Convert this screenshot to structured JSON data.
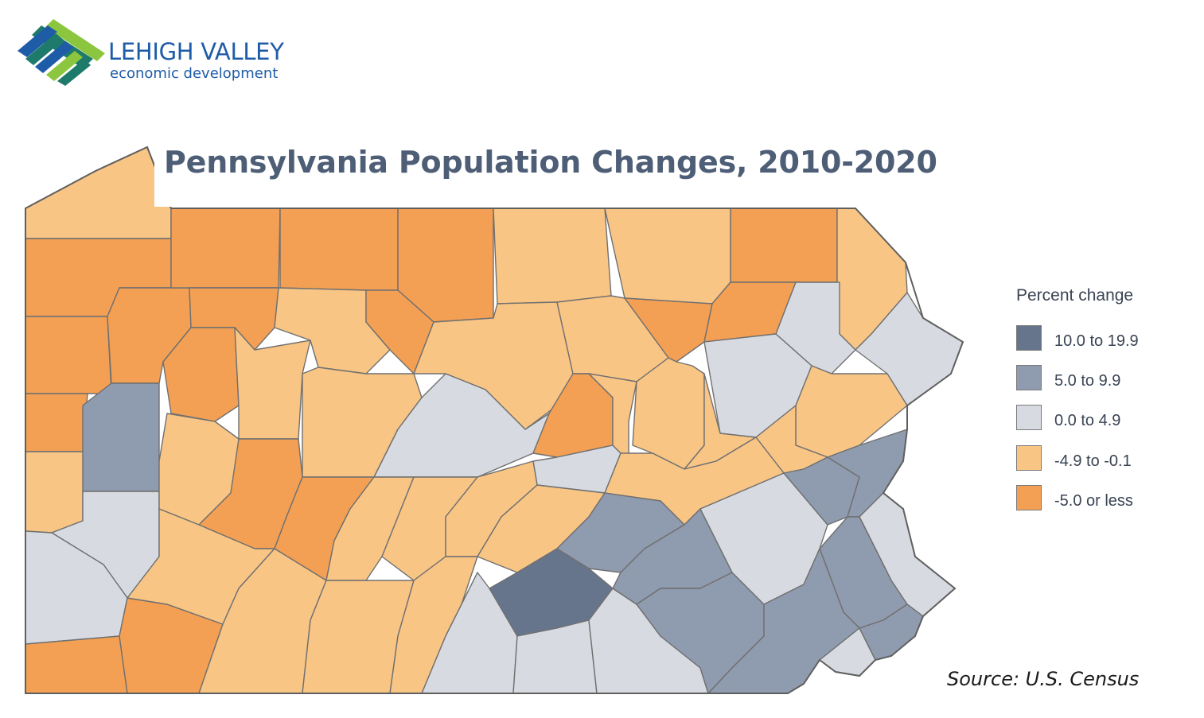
{
  "logo": {
    "line1": "LEHIGH VALLEY",
    "line2": "economic development",
    "colors": {
      "dark_blue": "#1f5ca8",
      "teal": "#1e7a6a",
      "light_green": "#8cc63e"
    }
  },
  "map": {
    "title": "Pennsylvania Population Changes, 2010-2020",
    "source": "Source: U.S. Census",
    "background_color": "#ffffff",
    "border_color": "#707070",
    "legend": {
      "title": "Percent change",
      "items": [
        {
          "label": "10.0 to 19.9",
          "color": "#66758c"
        },
        {
          "label": "5.0 to 9.9",
          "color": "#8f9bae"
        },
        {
          "label": "0.0 to 4.9",
          "color": "#d7dbe1"
        },
        {
          "label": "-4.9 to -0.1",
          "color": "#f8c585"
        },
        {
          "label": "-5.0 or less",
          "color": "#f3a054"
        }
      ]
    }
  }
}
